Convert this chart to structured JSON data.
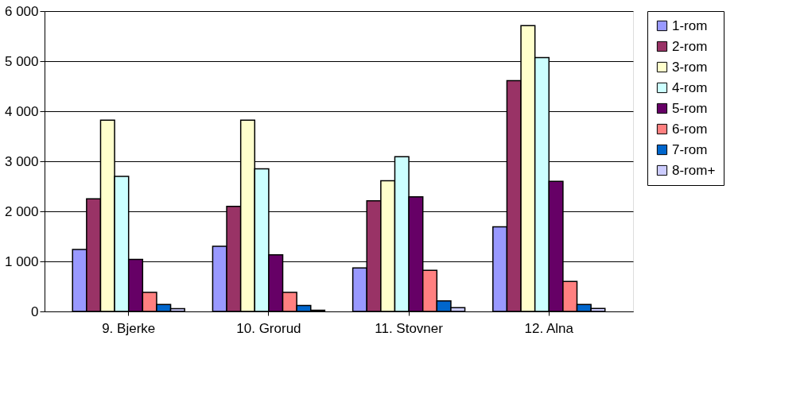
{
  "chart_data": {
    "type": "bar",
    "categories": [
      "9. Bjerke",
      "10. Grorud",
      "11. Stovner",
      "12. Alna"
    ],
    "series": [
      {
        "name": "1-rom",
        "color": "#9999ff",
        "values": [
          1240,
          1300,
          870,
          1690
        ]
      },
      {
        "name": "2-rom",
        "color": "#993366",
        "values": [
          2250,
          2100,
          2210,
          4610
        ]
      },
      {
        "name": "3-rom",
        "color": "#ffffcc",
        "values": [
          3820,
          3820,
          2610,
          5710
        ]
      },
      {
        "name": "4-rom",
        "color": "#ccffff",
        "values": [
          2700,
          2850,
          3090,
          5070
        ]
      },
      {
        "name": "5-rom",
        "color": "#660066",
        "values": [
          1040,
          1130,
          2290,
          2600
        ]
      },
      {
        "name": "6-rom",
        "color": "#ff8080",
        "values": [
          380,
          380,
          820,
          600
        ]
      },
      {
        "name": "7-rom",
        "color": "#0066cc",
        "values": [
          140,
          120,
          210,
          140
        ]
      },
      {
        "name": "8-rom+",
        "color": "#ccccff",
        "values": [
          55,
          25,
          75,
          60
        ]
      }
    ],
    "ylim": [
      0,
      6000
    ],
    "yticks": [
      {
        "value": 0,
        "label": "0"
      },
      {
        "value": 1000,
        "label": "1 000"
      },
      {
        "value": 2000,
        "label": "2 000"
      },
      {
        "value": 3000,
        "label": "3 000"
      },
      {
        "value": 4000,
        "label": "4 000"
      },
      {
        "value": 5000,
        "label": "5 000"
      },
      {
        "value": 6000,
        "label": "6 000"
      }
    ],
    "grid": "y",
    "legend": "right"
  }
}
